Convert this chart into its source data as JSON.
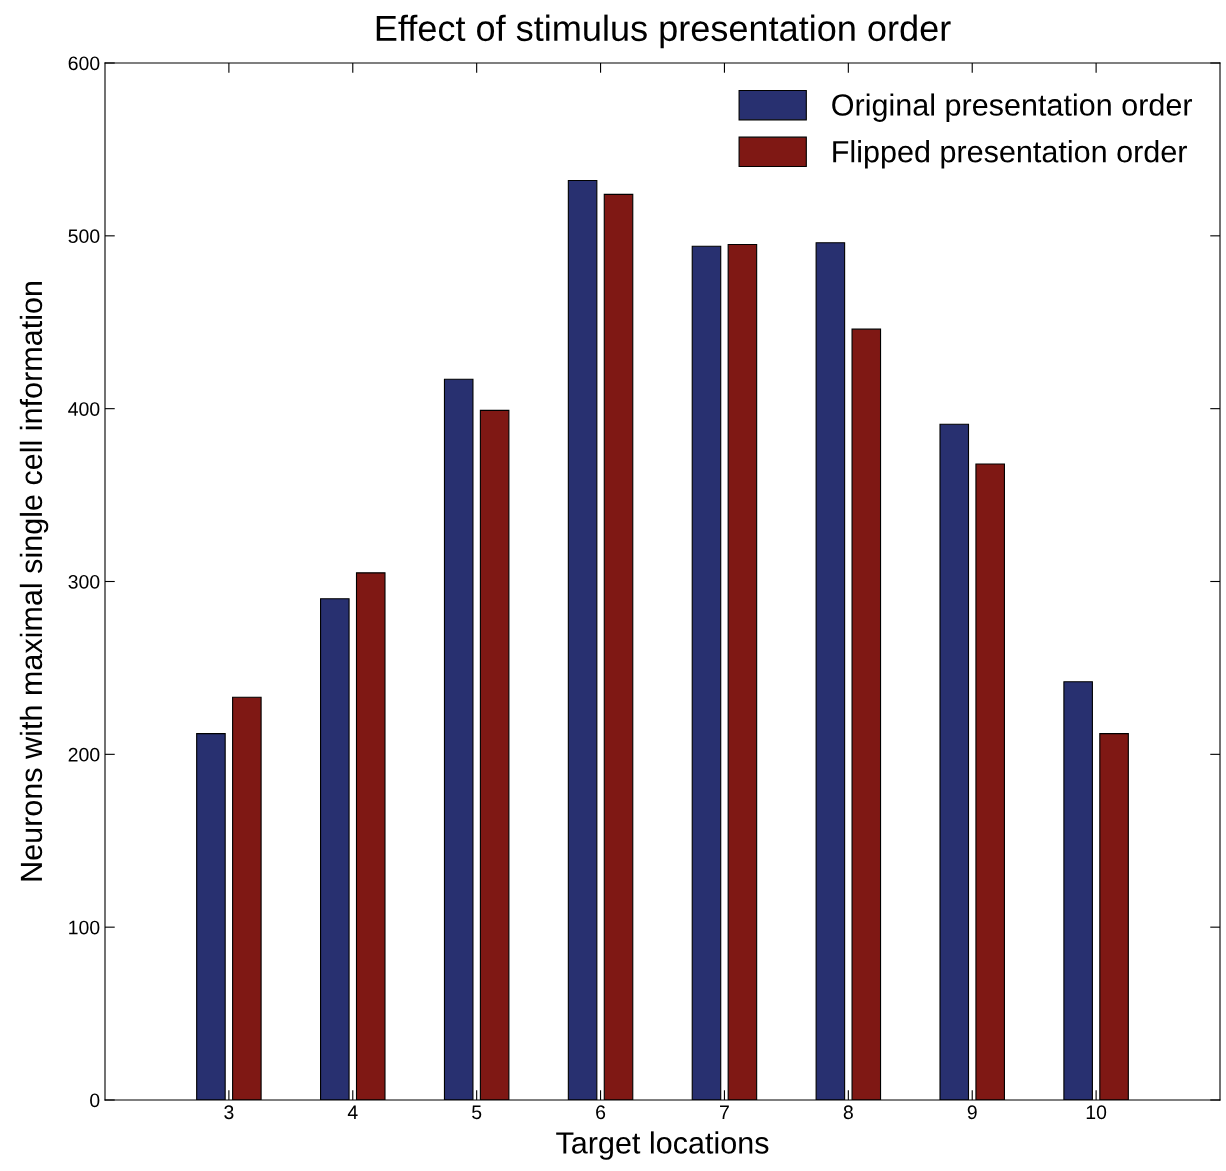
{
  "chart_data": {
    "type": "bar",
    "title": "Effect of stimulus presentation order",
    "xlabel": "Target locations",
    "ylabel": "Neurons with maximal single cell information",
    "x": [
      3,
      4,
      5,
      6,
      7,
      8,
      9,
      10
    ],
    "series": [
      {
        "name": "Original presentation order",
        "color": "#283070",
        "values": [
          212,
          290,
          417,
          532,
          494,
          496,
          391,
          242
        ]
      },
      {
        "name": "Flipped presentation order",
        "color": "#7f1814",
        "values": [
          233,
          305,
          399,
          524,
          495,
          446,
          368,
          212
        ]
      }
    ],
    "xlim": [
      2,
      11
    ],
    "xticks": [
      3,
      4,
      5,
      6,
      7,
      8,
      9,
      10
    ],
    "ylim": [
      0,
      600
    ],
    "yticks": [
      0,
      100,
      200,
      300,
      400,
      500,
      600
    ],
    "grid": false,
    "legend": "top right"
  }
}
